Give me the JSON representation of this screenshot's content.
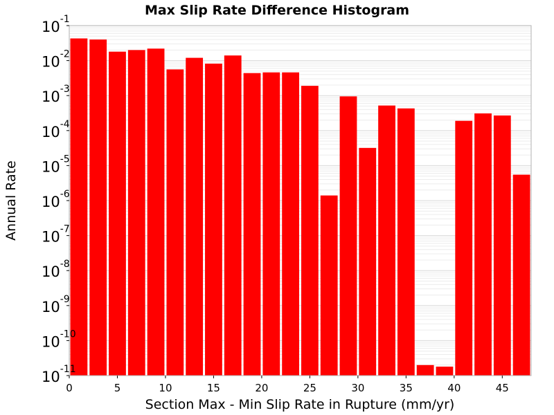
{
  "chart_data": {
    "type": "bar",
    "title": "Max Slip Rate Difference Histogram",
    "xlabel": "Section Max - Min Slip Rate in Rupture (mm/yr)",
    "ylabel": "Annual Rate",
    "y_scale": "log",
    "ylim": [
      1e-11,
      0.1
    ],
    "xlim": [
      0,
      48
    ],
    "bin_width": 2,
    "x_ticks": [
      "0",
      "5",
      "10",
      "15",
      "20",
      "25",
      "30",
      "35",
      "40",
      "45"
    ],
    "y_ticks": [
      {
        "base": "10",
        "exp": "-1"
      },
      {
        "base": "10",
        "exp": "-2"
      },
      {
        "base": "10",
        "exp": "-3"
      },
      {
        "base": "10",
        "exp": "-4"
      },
      {
        "base": "10",
        "exp": "-5"
      },
      {
        "base": "10",
        "exp": "-6"
      },
      {
        "base": "10",
        "exp": "-7"
      },
      {
        "base": "10",
        "exp": "-8"
      },
      {
        "base": "10",
        "exp": "-9"
      },
      {
        "base": "10",
        "exp": "-10"
      },
      {
        "base": "10",
        "exp": "-11"
      }
    ],
    "bin_starts": [
      0,
      2,
      4,
      6,
      8,
      10,
      12,
      14,
      16,
      18,
      20,
      22,
      24,
      26,
      28,
      30,
      32,
      34,
      36,
      38,
      40,
      42,
      44,
      46
    ],
    "values": [
      0.043,
      0.04,
      0.018,
      0.02,
      0.022,
      0.0056,
      0.012,
      0.0082,
      0.014,
      0.0044,
      0.0046,
      0.0046,
      0.0019,
      1.4e-06,
      0.00095,
      3.2e-05,
      0.00052,
      0.00043,
      2e-11,
      1.8e-11,
      0.00019,
      0.00031,
      0.00027,
      5.5e-06
    ],
    "bar_color": "#ff0000",
    "grid": true,
    "legend": "none"
  }
}
